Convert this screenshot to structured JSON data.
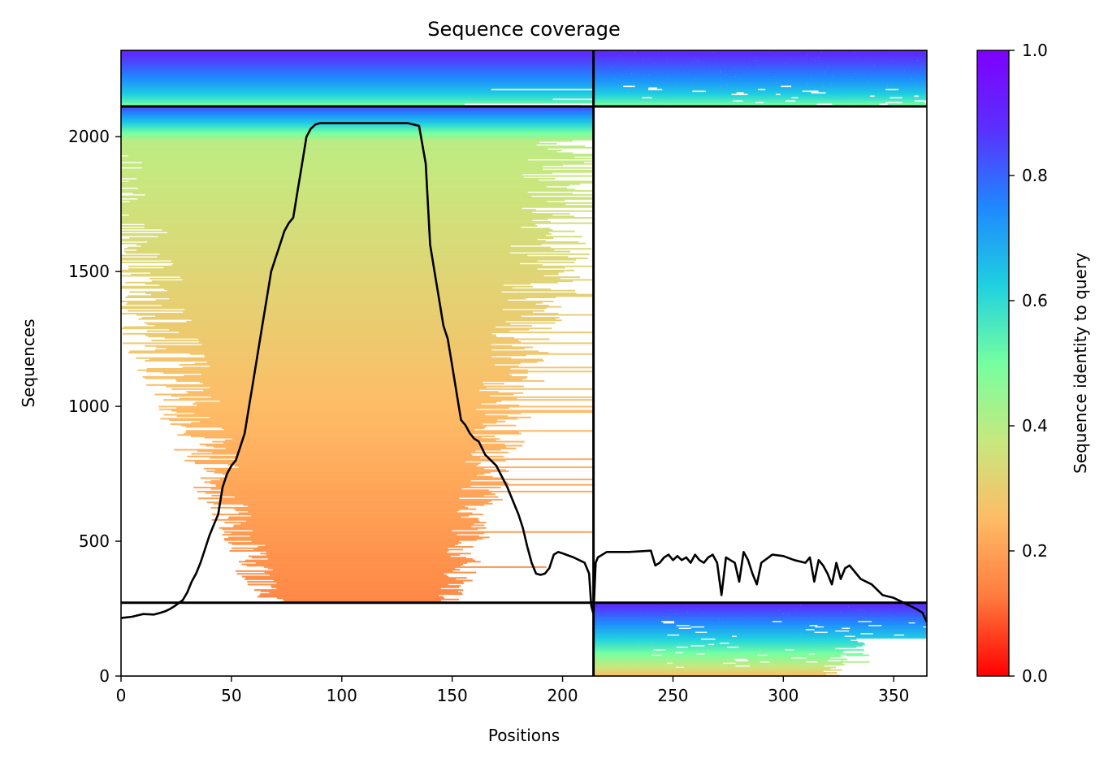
{
  "chart_data": {
    "type": "heatmap",
    "title": "Sequence coverage",
    "xlabel": "Positions",
    "ylabel": "Sequences",
    "xlim": [
      0,
      365
    ],
    "ylim": [
      0,
      2320
    ],
    "xticks": [
      0,
      50,
      100,
      150,
      200,
      250,
      300,
      350
    ],
    "yticks": [
      0,
      500,
      1000,
      1500,
      2000
    ],
    "colorbar": {
      "label": "Sequence identity to query",
      "range": [
        0,
        1
      ],
      "ticks": [
        0.0,
        0.2,
        0.4,
        0.6,
        0.8,
        1.0
      ],
      "tick_labels": [
        "0.0",
        "0.2",
        "0.4",
        "0.6",
        "0.8",
        "1.0"
      ],
      "colormap": "rainbow_r",
      "stops": [
        "#ff0000",
        "#ff7a3d",
        "#ffbb66",
        "#c7e87f",
        "#76ffa0",
        "#1fd0e0",
        "#1f88ff",
        "#5a2fff",
        "#7f00ff"
      ]
    },
    "separators": {
      "vertical_x": 214,
      "horizontal_y": [
        272,
        2112
      ]
    },
    "blocks": [
      {
        "name": "paired-top-left",
        "x": [
          0,
          214
        ],
        "y": [
          2112,
          2320
        ],
        "identity": [
          0.45,
          0.9
        ]
      },
      {
        "name": "paired-top-right",
        "x": [
          214,
          365
        ],
        "y": [
          2112,
          2320
        ],
        "identity": [
          0.45,
          0.9
        ]
      },
      {
        "name": "unpaired-left",
        "x": [
          0,
          214
        ],
        "y": [
          272,
          2112
        ],
        "identity": [
          0.15,
          0.8
        ]
      },
      {
        "name": "unpaired-right",
        "x": [
          214,
          365
        ],
        "y": [
          0,
          272
        ],
        "identity": [
          0.25,
          0.9
        ]
      }
    ],
    "coverage_line": {
      "color": "#000000",
      "x": [
        0,
        5,
        10,
        15,
        18,
        20,
        22,
        24,
        26,
        28,
        30,
        32,
        34,
        36,
        38,
        40,
        42,
        44,
        46,
        48,
        50,
        52,
        54,
        56,
        58,
        60,
        62,
        64,
        66,
        68,
        70,
        72,
        74,
        76,
        78,
        80,
        82,
        84,
        86,
        88,
        90,
        100,
        110,
        120,
        130,
        135,
        138,
        140,
        142,
        144,
        146,
        148,
        150,
        152,
        154,
        156,
        158,
        160,
        162,
        165,
        170,
        175,
        180,
        182,
        184,
        186,
        188,
        190,
        192,
        194,
        196,
        198,
        200,
        205,
        210,
        212,
        213,
        214,
        215,
        216,
        220,
        230,
        240,
        242,
        244,
        246,
        248,
        250,
        252,
        254,
        256,
        258,
        260,
        262,
        264,
        266,
        268,
        270,
        272,
        274,
        276,
        278,
        280,
        282,
        284,
        286,
        288,
        290,
        295,
        300,
        305,
        310,
        312,
        314,
        316,
        318,
        320,
        322,
        324,
        326,
        328,
        330,
        335,
        340,
        345,
        350,
        355,
        360,
        363,
        365
      ],
      "y": [
        215,
        220,
        230,
        228,
        235,
        240,
        248,
        258,
        270,
        282,
        310,
        350,
        380,
        420,
        470,
        520,
        560,
        600,
        700,
        750,
        780,
        800,
        850,
        900,
        1000,
        1100,
        1200,
        1300,
        1400,
        1500,
        1550,
        1600,
        1650,
        1680,
        1700,
        1800,
        1900,
        2000,
        2030,
        2045,
        2050,
        2050,
        2050,
        2050,
        2050,
        2040,
        1900,
        1600,
        1500,
        1400,
        1300,
        1250,
        1150,
        1050,
        950,
        930,
        900,
        880,
        870,
        820,
        780,
        700,
        600,
        550,
        480,
        420,
        380,
        375,
        380,
        400,
        450,
        460,
        455,
        440,
        420,
        380,
        260,
        230,
        420,
        440,
        460,
        460,
        465,
        410,
        420,
        440,
        450,
        430,
        445,
        430,
        440,
        420,
        450,
        430,
        420,
        440,
        450,
        420,
        300,
        440,
        430,
        420,
        350,
        460,
        430,
        380,
        340,
        420,
        450,
        445,
        430,
        420,
        440,
        350,
        430,
        410,
        380,
        340,
        420,
        360,
        400,
        410,
        360,
        340,
        300,
        290,
        270,
        250,
        235,
        200
      ]
    }
  }
}
